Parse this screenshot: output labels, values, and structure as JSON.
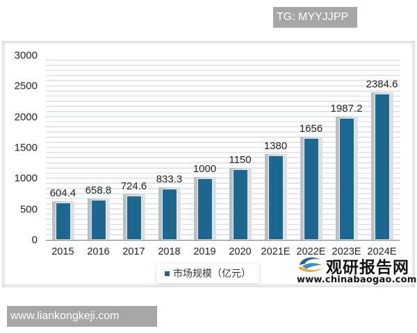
{
  "watermark_top": "TG: MYYJJPP",
  "watermark_bottom": "www.liankongkeji.com",
  "legend": {
    "label": "市场规模（亿元）",
    "color": "#1d6791"
  },
  "logo": {
    "name": "观研报告网",
    "url": "www.chinabaogao.com"
  },
  "chart_data": {
    "type": "bar",
    "title": "",
    "xlabel": "",
    "ylabel": "",
    "categories": [
      "2015",
      "2016",
      "2017",
      "2018",
      "2019",
      "2020",
      "2021E",
      "2022E",
      "2023E",
      "2024E"
    ],
    "series": [
      {
        "name": "市场规模（亿元）",
        "values": [
          604.4,
          658.8,
          724.6,
          833.3,
          1000,
          1150,
          1380,
          1656,
          1987.2,
          2384.6
        ],
        "color": "#1d6791"
      }
    ],
    "value_labels": [
      "604.4",
      "658.8",
      "724.6",
      "833.3",
      "1000",
      "1150",
      "1380",
      "1656",
      "1987.2",
      "2384.6"
    ],
    "ylim": [
      0,
      3000
    ],
    "yticks": [
      "0",
      "500",
      "1000",
      "1500",
      "2000",
      "2500",
      "3000"
    ],
    "grid": true,
    "legend_position": "bottom"
  }
}
